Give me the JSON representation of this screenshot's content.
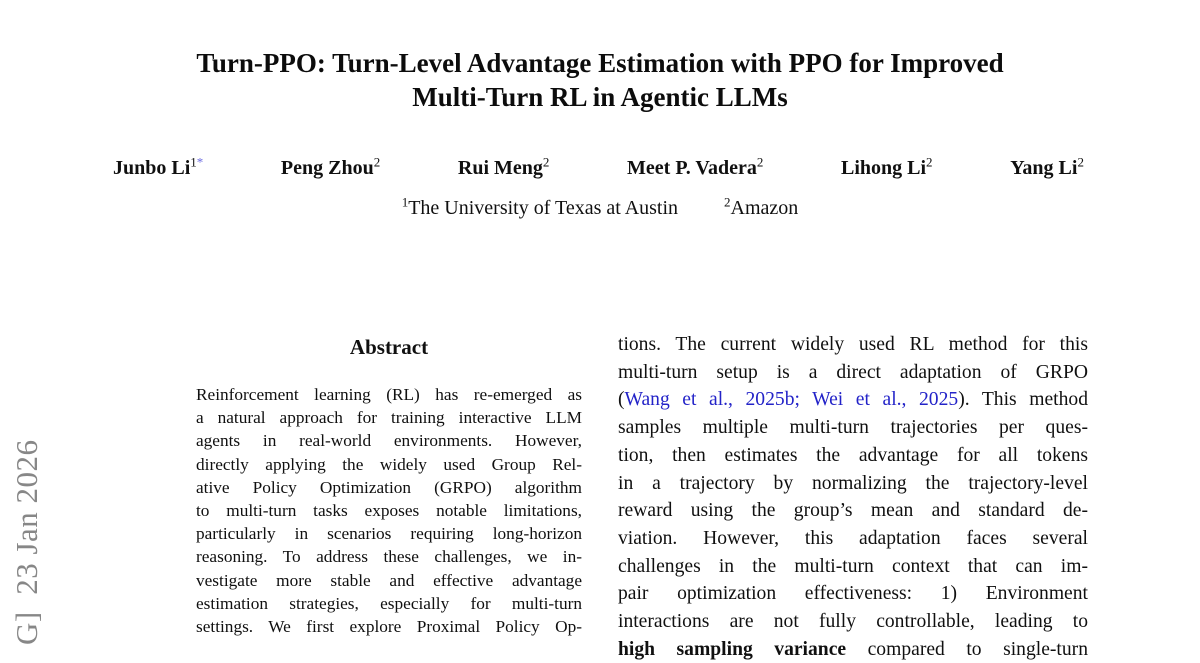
{
  "watermark": {
    "text": "G]  23 Jan 2026"
  },
  "title": {
    "line1": "Turn-PPO: Turn-Level Advantage Estimation with PPO for Improved",
    "line2": "Multi-Turn RL in Agentic LLMs"
  },
  "authors": [
    {
      "name": "Junbo Li",
      "sup": "1",
      "sup_mark": "*"
    },
    {
      "name": "Peng Zhou",
      "sup": "2"
    },
    {
      "name": "Rui Meng",
      "sup": "2"
    },
    {
      "name": "Meet P. Vadera",
      "sup": "2"
    },
    {
      "name": "Lihong Li",
      "sup": "2"
    },
    {
      "name": "Yang Li",
      "sup": "2"
    }
  ],
  "affiliations": [
    {
      "sup": "1",
      "name": "The University of Texas at Austin"
    },
    {
      "sup": "2",
      "name": "Amazon"
    }
  ],
  "abstract": {
    "heading": "Abstract",
    "lines": [
      "Reinforcement learning (RL) has re-emerged as",
      "a natural approach for training interactive LLM",
      "agents in real-world environments. However,",
      "directly applying the widely used Group Rel-",
      "ative Policy Optimization (GRPO) algorithm",
      "to multi-turn tasks exposes notable limitations,",
      "particularly in scenarios requiring long-horizon",
      "reasoning. To address these challenges, we in-",
      "vestigate more stable and effective advantage",
      "estimation strategies, especially for multi-turn",
      "settings. We first explore Proximal Policy Op-"
    ]
  },
  "right_column": {
    "lines_top": [
      "tions. The current widely used RL method for this",
      "multi-turn setup is a direct adaptation of GRPO"
    ],
    "citation": {
      "prefix": "(",
      "cite1": "Wang et al., 2025b;",
      "mid": " ",
      "cite2": "Wei et al., 2025",
      "suffix": "). This method"
    },
    "lines_bottom": [
      "samples multiple multi-turn trajectories per ques-",
      "tion, then estimates the advantage for all tokens",
      "in a trajectory by normalizing the trajectory-level",
      "reward using the group’s mean and standard de-",
      "viation. However, this adaptation faces several",
      "challenges in the multi-turn context that can im-",
      "pair optimization effectiveness: 1) Environment",
      "interactions are not fully controllable, leading to"
    ],
    "clipped": {
      "bold": "high sampling variance",
      "rest": " compared to single-turn"
    }
  },
  "colors": {
    "citation_blue": "#2323c8",
    "footnote_mark_blue": "#6b6be0",
    "watermark_gray": "#878787",
    "text": "#101010"
  }
}
